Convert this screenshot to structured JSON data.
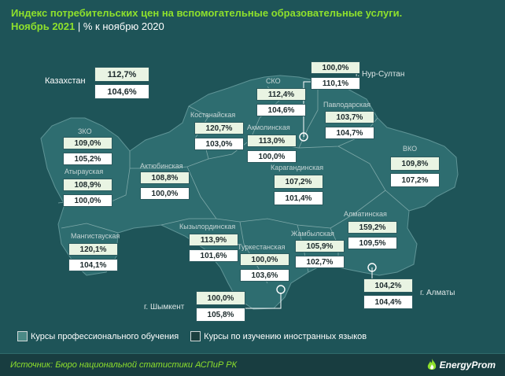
{
  "header": {
    "title": "Индекс потребительских цен на вспомогательные образовательные услуги.",
    "period": "Ноябрь 2021",
    "separator": "|",
    "subtitle": "% к ноябрю 2020"
  },
  "colors": {
    "background": "#1e5458",
    "land": "#2e6d70",
    "accent_green": "#8ee02c",
    "box_professional": "#e9f4e3",
    "box_language": "#ffffff"
  },
  "regions": [
    {
      "id": "kazakhstan",
      "name": "Казахстан",
      "professional": "112,7%",
      "language": "104,6%"
    },
    {
      "id": "nur-sultan",
      "name": "г. Нур-Султан",
      "professional": "100,0%",
      "language": "110,1%"
    },
    {
      "id": "sko",
      "name": "СКО",
      "professional": "112,4%",
      "language": "104,6%"
    },
    {
      "id": "pavlodar",
      "name": "Павлодарская",
      "professional": "103,7%",
      "language": "104,7%"
    },
    {
      "id": "kostanay",
      "name": "Костанайская",
      "professional": "120,7%",
      "language": "103,0%"
    },
    {
      "id": "akmola",
      "name": "Акмолинская",
      "professional": "113,0%",
      "language": "100,0%"
    },
    {
      "id": "zko",
      "name": "ЗКО",
      "professional": "109,0%",
      "language": "105,2%"
    },
    {
      "id": "atyrau",
      "name": "Атырауская",
      "professional": "108,9%",
      "language": "100,0%"
    },
    {
      "id": "aktobe",
      "name": "Актюбинская",
      "professional": "108,8%",
      "language": "100,0%"
    },
    {
      "id": "karaganda",
      "name": "Карагандинская",
      "professional": "107,2%",
      "language": "101,4%"
    },
    {
      "id": "vko",
      "name": "ВКО",
      "professional": "109,8%",
      "language": "107,2%"
    },
    {
      "id": "almaty-region",
      "name": "Алматинская",
      "professional": "159,2%",
      "language": "109,5%"
    },
    {
      "id": "mangystau",
      "name": "Мангистауская",
      "professional": "120,1%",
      "language": "104,1%"
    },
    {
      "id": "kyzylorda",
      "name": "Кызылординская",
      "professional": "113,9%",
      "language": "101,6%"
    },
    {
      "id": "turkestan",
      "name": "Туркестанская",
      "professional": "100,0%",
      "language": "103,6%"
    },
    {
      "id": "zhambyl",
      "name": "Жамбылская",
      "professional": "105,9%",
      "language": "102,7%"
    },
    {
      "id": "almaty-city",
      "name": "г. Алматы",
      "professional": "104,2%",
      "language": "104,4%"
    },
    {
      "id": "shymkent",
      "name": "г. Шымкент",
      "professional": "100,0%",
      "language": "105,8%"
    }
  ],
  "legend": {
    "professional": "Курсы профессионального обучения",
    "language": "Курсы по изучению иностранных языков"
  },
  "footer": {
    "source": "Источник: Бюро национальной статистики АСПиР РК",
    "brand": "EnergyProm",
    "brand_icon": "flame-icon"
  }
}
